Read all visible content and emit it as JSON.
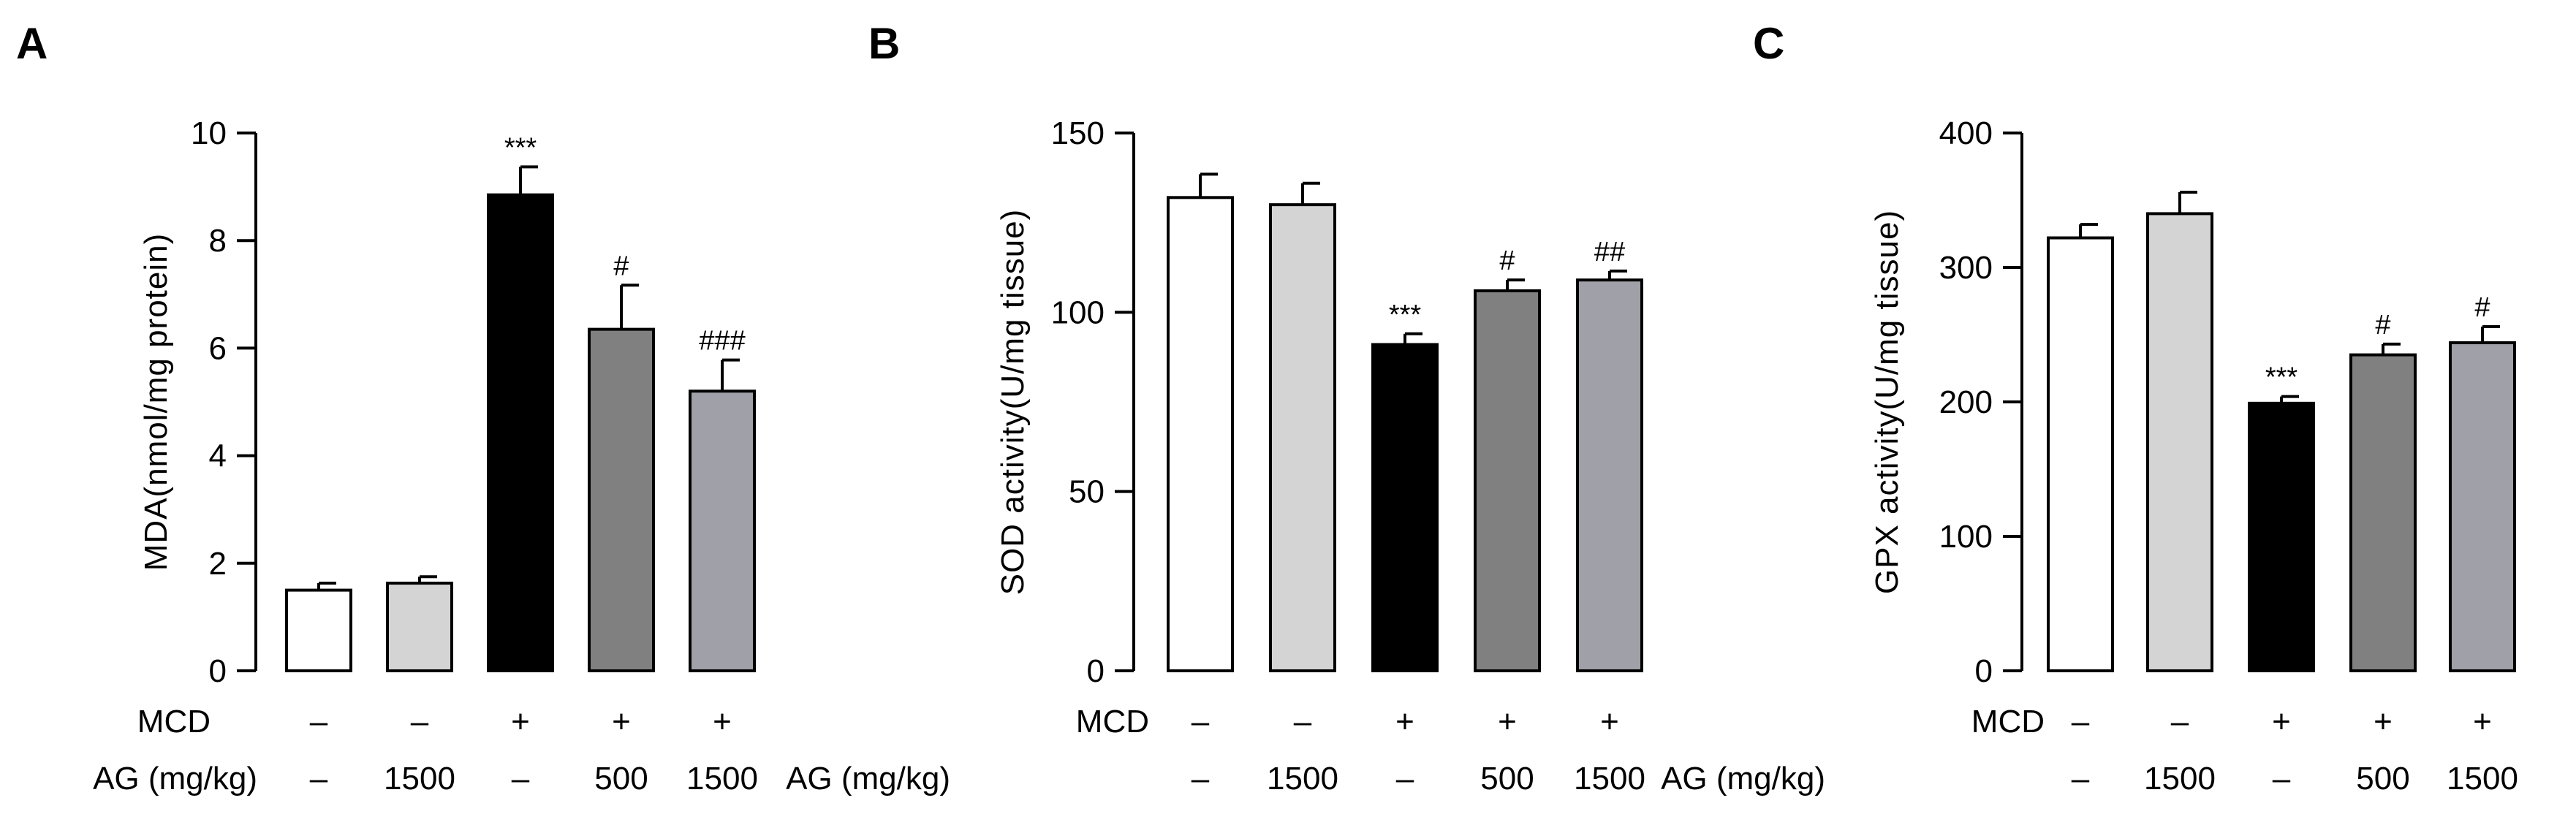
{
  "figure": {
    "row_headers": {
      "mcd": "MCD",
      "ag": "AG (mg/kg)"
    },
    "bar_colors": [
      "#ffffff",
      "#d4d4d4",
      "#000000",
      "#808080",
      "#a0a0a8"
    ]
  },
  "chart_data": [
    {
      "panel": "A",
      "type": "bar",
      "title": "",
      "xlabel": "",
      "ylabel": "MDA(nmol/mg protein)",
      "ylim": [
        0,
        10
      ],
      "yticks": [
        "0",
        "2",
        "4",
        "6",
        "8",
        "10"
      ],
      "mcd": [
        "–",
        "–",
        "+",
        "+",
        "+"
      ],
      "ag": [
        "–",
        "1500",
        "–",
        "500",
        "1500"
      ],
      "values": [
        1.5,
        1.63,
        8.85,
        6.35,
        5.2
      ],
      "errors": [
        0.13,
        0.12,
        0.52,
        0.82,
        0.58
      ],
      "annotations": [
        "",
        "",
        "***",
        "#",
        "###"
      ]
    },
    {
      "panel": "B",
      "type": "bar",
      "title": "",
      "xlabel": "",
      "ylabel": "SOD activity(U/mg tissue)",
      "ylim": [
        0,
        150
      ],
      "yticks": [
        "0",
        "50",
        "100",
        "150"
      ],
      "mcd": [
        "–",
        "–",
        "+",
        "+",
        "+"
      ],
      "ag": [
        "–",
        "1500",
        "–",
        "500",
        "1500"
      ],
      "values": [
        132,
        130,
        91,
        106,
        109
      ],
      "errors": [
        6.5,
        6,
        3,
        3,
        2.5
      ],
      "annotations": [
        "",
        "",
        "***",
        "#",
        "##"
      ]
    },
    {
      "panel": "C",
      "type": "bar",
      "title": "",
      "xlabel": "",
      "ylabel": "GPX activity(U/mg tissue)",
      "ylim": [
        0,
        400
      ],
      "yticks": [
        "0",
        "100",
        "200",
        "300",
        "400"
      ],
      "mcd": [
        "–",
        "–",
        "+",
        "+",
        "+"
      ],
      "ag": [
        "–",
        "1500",
        "–",
        "500",
        "1500"
      ],
      "values": [
        322,
        340,
        199,
        235,
        244
      ],
      "errors": [
        10,
        16,
        5,
        8,
        12
      ],
      "annotations": [
        "",
        "",
        "***",
        "#",
        "#"
      ]
    }
  ]
}
